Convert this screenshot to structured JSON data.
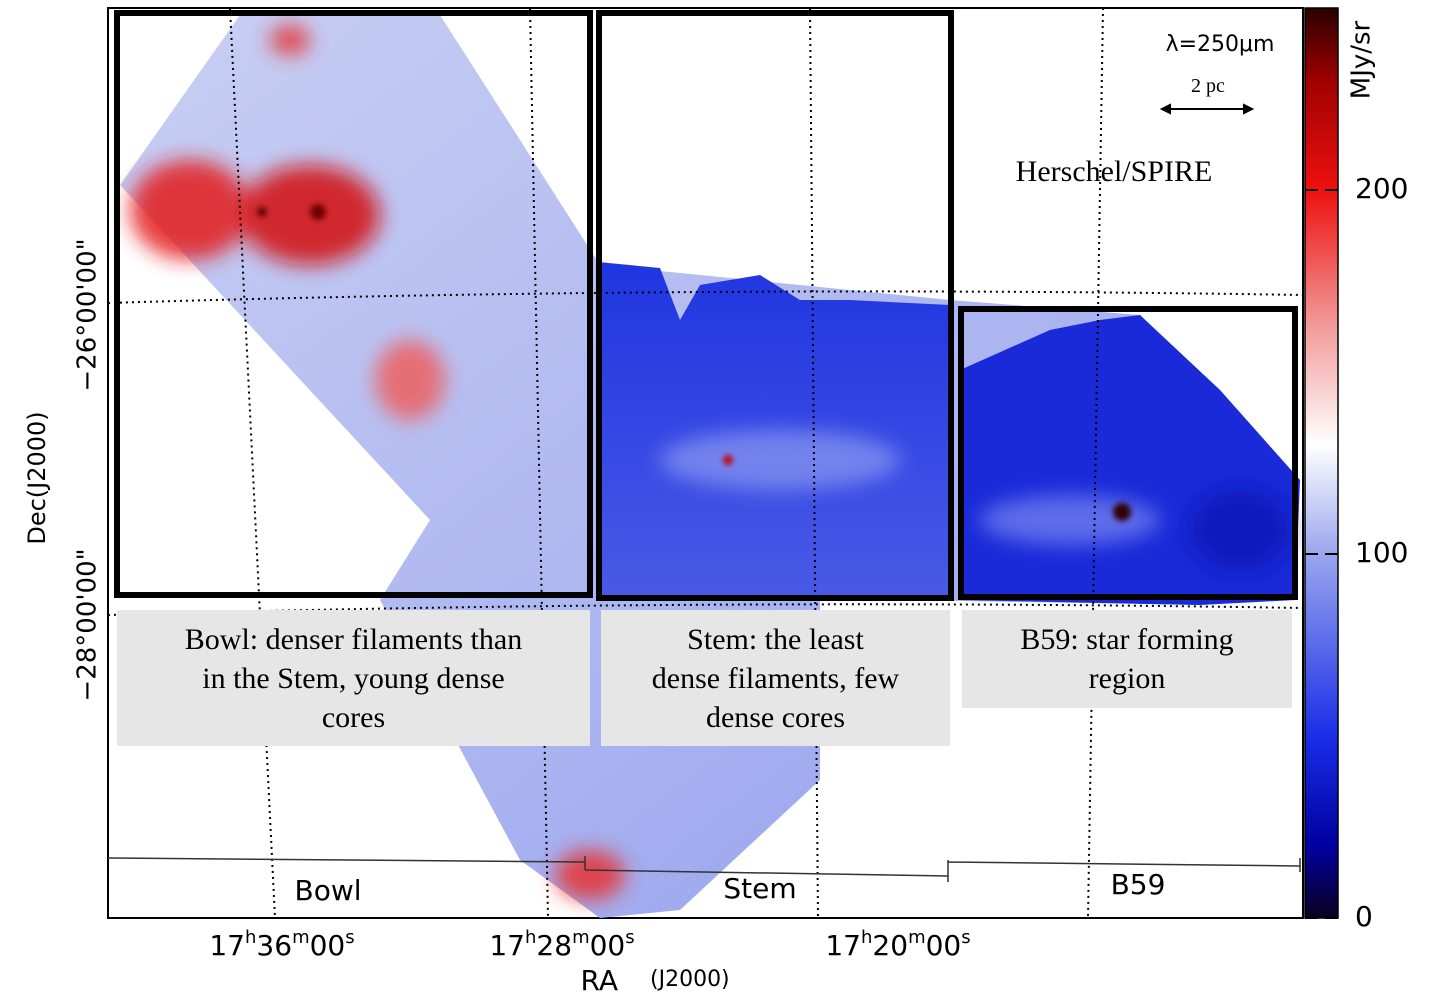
{
  "header": {
    "wavelength": "λ=250μm",
    "scale_bar": "2 pc",
    "instrument": "Herschel/SPIRE"
  },
  "colorbar": {
    "unit": "MJy/sr",
    "range": [
      0,
      250
    ],
    "ticks": [
      0,
      100,
      200
    ]
  },
  "axes": {
    "y_title": "Dec(J2000)",
    "y_ticks": [
      "−26°00'00\"",
      "−28°00'00\""
    ],
    "x_title_main": "RA",
    "x_title_sub": "(J2000)",
    "x_ticks": [
      "17h36m00s",
      "17h28m00s",
      "17h20m00s"
    ]
  },
  "regions": [
    {
      "name": "Bowl",
      "caption": [
        "Bowl: denser filaments than",
        "in the Stem, young dense",
        "cores"
      ]
    },
    {
      "name": "Stem",
      "caption": [
        "Stem: the least",
        "dense filaments, few",
        "dense cores"
      ]
    },
    {
      "name": "B59",
      "caption": [
        "B59: star forming",
        "region"
      ]
    }
  ]
}
